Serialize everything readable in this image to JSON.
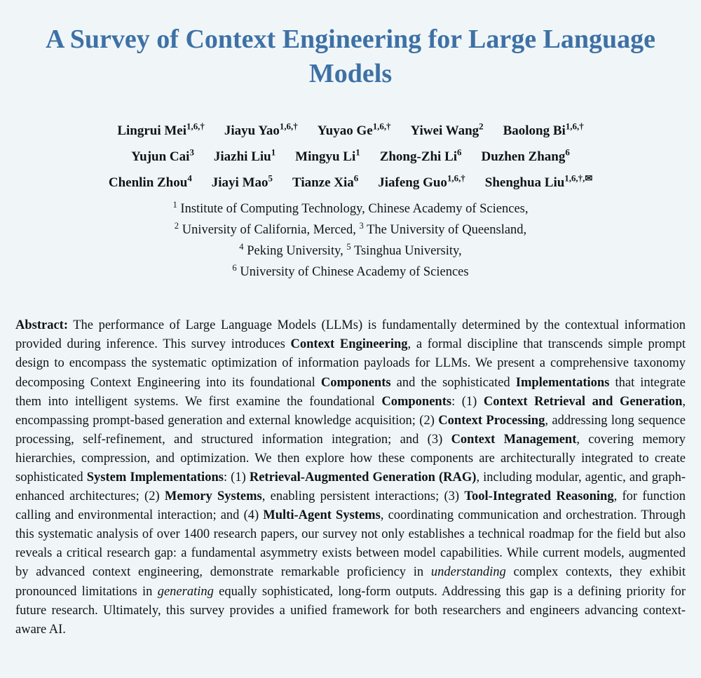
{
  "page": {
    "background_color": "#f0f6f8",
    "title_color": "#3e71a5"
  },
  "title": "A Survey of Context Engineering for Large Language Models",
  "authors": {
    "rows": [
      [
        {
          "name": "Lingrui Mei",
          "sup": "1,6,†"
        },
        {
          "name": "Jiayu Yao",
          "sup": "1,6,†"
        },
        {
          "name": "Yuyao Ge",
          "sup": "1,6,†"
        },
        {
          "name": "Yiwei Wang",
          "sup": "2"
        },
        {
          "name": "Baolong Bi",
          "sup": "1,6,†"
        }
      ],
      [
        {
          "name": "Yujun Cai",
          "sup": "3"
        },
        {
          "name": "Jiazhi Liu",
          "sup": "1"
        },
        {
          "name": "Mingyu Li",
          "sup": "1"
        },
        {
          "name": "Zhong-Zhi Li",
          "sup": "6"
        },
        {
          "name": "Duzhen Zhang",
          "sup": "6"
        }
      ],
      [
        {
          "name": "Chenlin Zhou",
          "sup": "4"
        },
        {
          "name": "Jiayi Mao",
          "sup": "5"
        },
        {
          "name": "Tianze Xia",
          "sup": "6"
        },
        {
          "name": "Jiafeng Guo",
          "sup": "1,6,†"
        },
        {
          "name": "Shenghua Liu",
          "sup": "1,6,†,✉"
        }
      ]
    ]
  },
  "affiliations": {
    "lines": [
      [
        {
          "sup": "1",
          "text": " Institute of Computing Technology, Chinese Academy of Sciences,"
        }
      ],
      [
        {
          "sup": "2",
          "text": " University of California, Merced, "
        },
        {
          "sup": "3",
          "text": " The University of Queensland,"
        }
      ],
      [
        {
          "sup": "4",
          "text": " Peking University, "
        },
        {
          "sup": "5",
          "text": " Tsinghua University,"
        }
      ],
      [
        {
          "sup": "6",
          "text": " University of Chinese Academy of Sciences"
        }
      ]
    ]
  },
  "abstract": {
    "label": "Abstract:",
    "segments": [
      {
        "style": "normal",
        "text": " The performance of Large Language Models (LLMs) is fundamentally determined by the contextual information provided during inference.  This survey introduces "
      },
      {
        "style": "bold",
        "text": "Context Engineering"
      },
      {
        "style": "normal",
        "text": ", a formal discipline that transcends simple prompt design to encompass the systematic optimization of information payloads for LLMs.  We present a comprehensive taxonomy decomposing Context Engineering into its foundational "
      },
      {
        "style": "bold",
        "text": "Components"
      },
      {
        "style": "normal",
        "text": " and the sophisticated "
      },
      {
        "style": "bold",
        "text": "Implementations"
      },
      {
        "style": "normal",
        "text": " that integrate them into intelligent systems.  We first examine the foundational "
      },
      {
        "style": "bold",
        "text": "Components"
      },
      {
        "style": "normal",
        "text": ": (1) "
      },
      {
        "style": "bold",
        "text": "Context Retrieval and Generation"
      },
      {
        "style": "normal",
        "text": ", encompassing prompt-based generation and external knowledge acquisition; (2) "
      },
      {
        "style": "bold",
        "text": "Context Processing"
      },
      {
        "style": "normal",
        "text": ", addressing long sequence processing, self-refinement, and structured information integration; and (3) "
      },
      {
        "style": "bold",
        "text": "Context Management"
      },
      {
        "style": "normal",
        "text": ", covering memory hierarchies, compression, and optimization.  We then explore how these components are architecturally integrated to create sophisticated "
      },
      {
        "style": "bold",
        "text": "System Implementations"
      },
      {
        "style": "normal",
        "text": ": (1) "
      },
      {
        "style": "bold",
        "text": "Retrieval-Augmented Generation (RAG)"
      },
      {
        "style": "normal",
        "text": ", including modular, agentic, and graph-enhanced architectures; (2) "
      },
      {
        "style": "bold",
        "text": "Memory Systems"
      },
      {
        "style": "normal",
        "text": ", enabling persistent interactions; (3) "
      },
      {
        "style": "bold",
        "text": "Tool-Integrated Reasoning"
      },
      {
        "style": "normal",
        "text": ", for function calling and environmental interaction; and (4) "
      },
      {
        "style": "bold",
        "text": "Multi-Agent Systems"
      },
      {
        "style": "normal",
        "text": ", coordinating communication and orchestration.  Through this systematic analysis of over 1400 research papers, our survey not only establishes a technical roadmap for the field but also reveals a critical research gap: a fundamental asymmetry exists between model capabilities.  While current models, augmented by advanced context engineering, demonstrate remarkable proficiency in "
      },
      {
        "style": "italic",
        "text": "understanding"
      },
      {
        "style": "normal",
        "text": " complex contexts, they exhibit pronounced limitations in "
      },
      {
        "style": "italic",
        "text": "generating"
      },
      {
        "style": "normal",
        "text": " equally sophisticated, long-form outputs.  Addressing this gap is a defining priority for future research.  Ultimately, this survey provides a unified framework for both researchers and engineers advancing context-aware AI."
      }
    ]
  }
}
